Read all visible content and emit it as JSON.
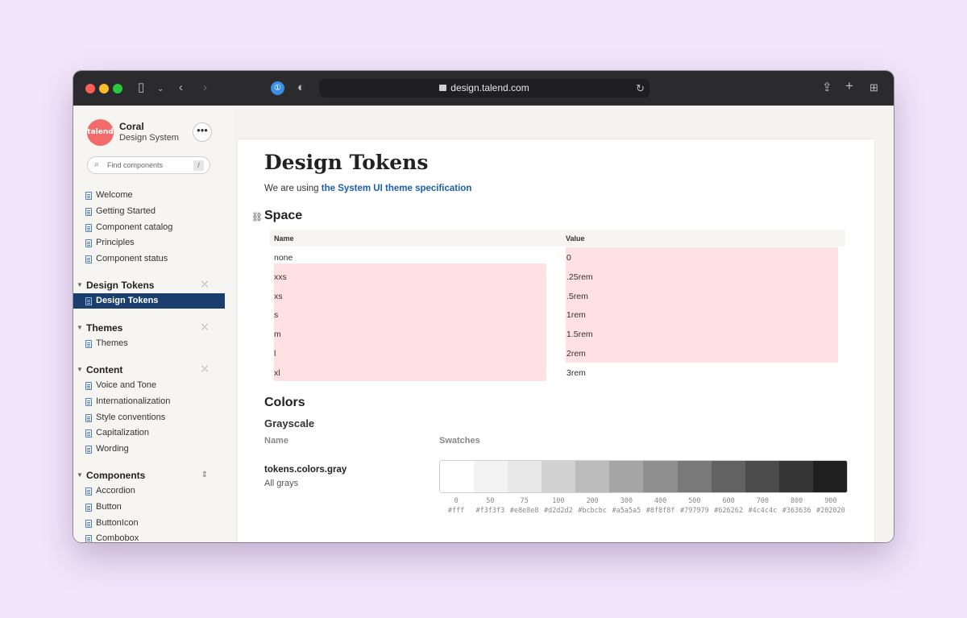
{
  "browser": {
    "url": "design.talend.com"
  },
  "sidebar": {
    "brand_logo_text": "talend",
    "brand_name": "Coral",
    "brand_sub": "Design System",
    "more_label": "•••",
    "search_placeholder": "Find components",
    "search_shortcut": "/",
    "top_items": [
      "Welcome",
      "Getting Started",
      "Component catalog",
      "Principles",
      "Component status"
    ],
    "groups": [
      {
        "title": "Design Tokens",
        "items": [
          "Design Tokens"
        ]
      },
      {
        "title": "Themes",
        "items": [
          "Themes"
        ]
      },
      {
        "title": "Content",
        "items": [
          "Voice and Tone",
          "Internationalization",
          "Style conventions",
          "Capitalization",
          "Wording"
        ]
      },
      {
        "title": "Components",
        "items": [
          "Accordion",
          "Button",
          "ButtonIcon",
          "Combobox"
        ]
      }
    ],
    "active_item": "Design Tokens"
  },
  "main": {
    "title": "Design Tokens",
    "intro_text": "We are using ",
    "intro_link": "the System UI theme specification",
    "space_heading": "Space",
    "space_table": {
      "headers": [
        "Name",
        "Value"
      ],
      "rows": [
        [
          "none",
          "0"
        ],
        [
          "xxs",
          ".25rem"
        ],
        [
          "xs",
          ".5rem"
        ],
        [
          "s",
          "1rem"
        ],
        [
          "m",
          "1.5rem"
        ],
        [
          "l",
          "2rem"
        ],
        [
          "xl",
          "3rem"
        ]
      ]
    },
    "colors_heading": "Colors",
    "grayscale_heading": "Grayscale",
    "grayscale_columns": [
      "Name",
      "Swatches"
    ],
    "token_name": "tokens.colors.gray",
    "token_desc": "All grays",
    "swatches": [
      {
        "step": "0",
        "hex": "#fff"
      },
      {
        "step": "50",
        "hex": "#f3f3f3"
      },
      {
        "step": "75",
        "hex": "#e8e8e8"
      },
      {
        "step": "100",
        "hex": "#d2d2d2"
      },
      {
        "step": "200",
        "hex": "#bcbcbc"
      },
      {
        "step": "300",
        "hex": "#a5a5a5"
      },
      {
        "step": "400",
        "hex": "#8f8f8f"
      },
      {
        "step": "500",
        "hex": "#797979"
      },
      {
        "step": "600",
        "hex": "#626262"
      },
      {
        "step": "700",
        "hex": "#4c4c4c"
      },
      {
        "step": "800",
        "hex": "#363636"
      },
      {
        "step": "900",
        "hex": "#202020"
      }
    ]
  }
}
